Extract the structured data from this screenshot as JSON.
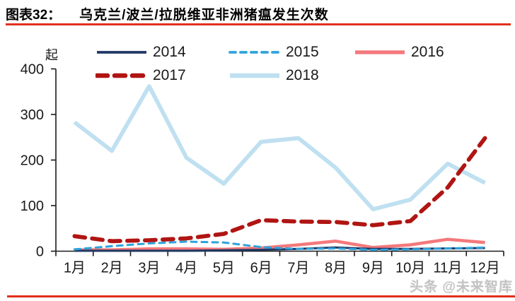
{
  "header": {
    "figure_label": "图表32：",
    "title": "乌克兰/波兰/拉脱维亚非洲猪瘟发生次数",
    "rule_color": "#e0301e"
  },
  "watermark": "头条 @未来智库",
  "chart_data": {
    "type": "line",
    "title": "乌克兰/波兰/拉脱维亚非洲猪瘟发生次数",
    "ylabel": "起",
    "xlabel": "",
    "ylim": [
      0,
      400
    ],
    "yticks": [
      "0",
      "100",
      "200",
      "300",
      "400"
    ],
    "grid": false,
    "legend_position": "top",
    "axis_color": "#1a1a1a",
    "categories": [
      "1月",
      "2月",
      "3月",
      "4月",
      "5月",
      "6月",
      "7月",
      "8月",
      "9月",
      "10月",
      "11月",
      "12月"
    ],
    "series": [
      {
        "name": "2014",
        "color": "#1f3864",
        "line_style": "solid",
        "thickness": "thin",
        "values": [
          1,
          1,
          1,
          1,
          2,
          3,
          5,
          8,
          5,
          5,
          6,
          7
        ]
      },
      {
        "name": "2015",
        "color": "#2ea3dc",
        "line_style": "dashed",
        "thickness": "thin",
        "values": [
          4,
          11,
          17,
          21,
          19,
          9,
          5,
          6,
          3,
          4,
          6,
          8
        ]
      },
      {
        "name": "2016",
        "color": "#f4797c",
        "line_style": "solid",
        "thickness": "medium",
        "values": [
          3,
          3,
          5,
          5,
          4,
          7,
          14,
          22,
          8,
          14,
          26,
          19
        ]
      },
      {
        "name": "2017",
        "color": "#b01513",
        "line_style": "dashed",
        "thickness": "thick",
        "values": [
          33,
          22,
          24,
          28,
          38,
          68,
          65,
          64,
          57,
          66,
          140,
          248
        ]
      },
      {
        "name": "2018",
        "color": "#bfe0f0",
        "line_style": "solid",
        "thickness": "thick",
        "values": [
          283,
          220,
          362,
          205,
          148,
          240,
          248,
          183,
          92,
          113,
          192,
          150
        ]
      }
    ],
    "draw_order": [
      "2018",
      "2016",
      "2014",
      "2015",
      "2017"
    ]
  }
}
